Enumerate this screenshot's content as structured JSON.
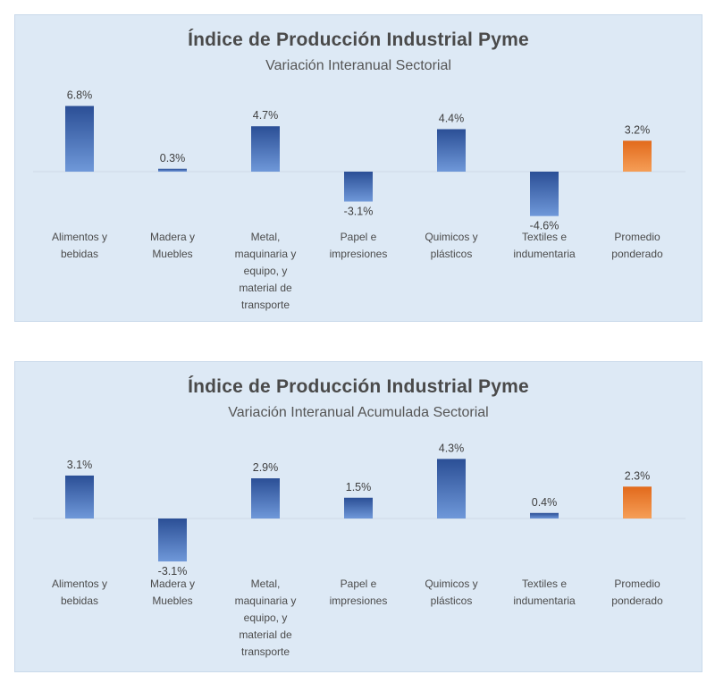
{
  "colors": {
    "bar": "#3a62ae",
    "bar_highlight": "#e8762b",
    "panel_bg": "#dde9f5"
  },
  "chart_data": [
    {
      "type": "bar",
      "title": "Índice de Producción Industrial Pyme",
      "subtitle": "Variación Interanual Sectorial",
      "categories": [
        [
          "Alimentos y",
          "bebidas"
        ],
        [
          "Madera y",
          "Muebles"
        ],
        [
          "Metal,",
          "maquinaria y",
          "equipo, y",
          "material de",
          "transporte"
        ],
        [
          "Papel e",
          "impresiones"
        ],
        [
          "Quimicos y",
          "plásticos"
        ],
        [
          "Textiles e",
          "indumentaria"
        ],
        [
          "Promedio",
          "ponderado"
        ]
      ],
      "values": [
        6.8,
        0.3,
        4.7,
        -3.1,
        4.4,
        -4.6,
        3.2
      ],
      "value_labels": [
        "6.8%",
        "0.3%",
        "4.7%",
        "-3.1%",
        "4.4%",
        "-4.6%",
        "3.2%"
      ],
      "highlight_index": 6,
      "grid": false,
      "legend": "none"
    },
    {
      "type": "bar",
      "title": "Índice de Producción Industrial Pyme",
      "subtitle": "Variación Interanual Acumulada Sectorial",
      "categories": [
        [
          "Alimentos y",
          "bebidas"
        ],
        [
          "Madera y",
          "Muebles"
        ],
        [
          "Metal,",
          "maquinaria y",
          "equipo, y",
          "material de",
          "transporte"
        ],
        [
          "Papel e",
          "impresiones"
        ],
        [
          "Quimicos y",
          "plásticos"
        ],
        [
          "Textiles e",
          "indumentaria"
        ],
        [
          "Promedio",
          "ponderado"
        ]
      ],
      "values": [
        3.1,
        -3.1,
        2.9,
        1.5,
        4.3,
        0.4,
        2.3
      ],
      "value_labels": [
        "3.1%",
        "-3.1%",
        "2.9%",
        "1.5%",
        "4.3%",
        "0.4%",
        "2.3%"
      ],
      "highlight_index": 6,
      "grid": false,
      "legend": "none"
    }
  ]
}
